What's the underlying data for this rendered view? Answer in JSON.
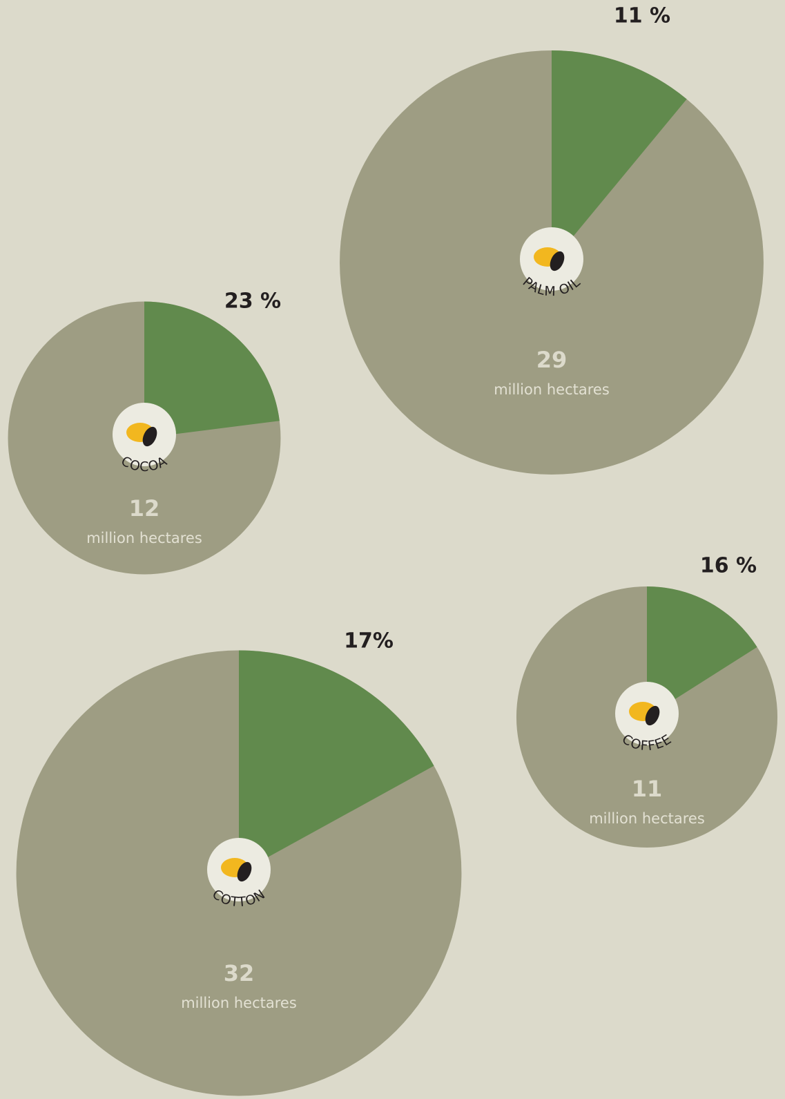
{
  "chart_data": [
    {
      "type": "pie",
      "label": "PALM OIL",
      "total": 29,
      "unit": "million hectares",
      "values": [
        11
      ],
      "value_labels": [
        "11 %"
      ],
      "color": "#618a4d",
      "base_color": "#9e9d83"
    },
    {
      "type": "pie",
      "label": "COCOA",
      "total": 12,
      "unit": "million hectares",
      "values": [
        23
      ],
      "value_labels": [
        "23 %"
      ],
      "color": "#618a4d",
      "base_color": "#9e9d83"
    },
    {
      "type": "pie",
      "label": "COTTON",
      "total": 32,
      "unit": "million hectares",
      "values": [
        17
      ],
      "value_labels": [
        "17%"
      ],
      "color": "#618a4d",
      "base_color": "#9e9d83"
    },
    {
      "type": "pie",
      "label": "COFFEE",
      "total": 11,
      "unit": "million hectares",
      "values": [
        16
      ],
      "value_labels": [
        "16 %"
      ],
      "color": "#618a4d",
      "base_color": "#9e9d83"
    }
  ]
}
